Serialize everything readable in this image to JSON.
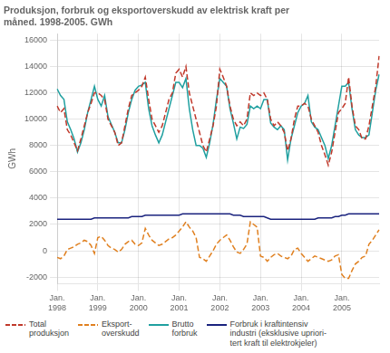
{
  "chart_data": {
    "type": "line",
    "title": "Produksjon, forbruk og eksportoverskudd av elektrisk kraft per\nmåned. 1998-2005. GWh",
    "ylabel": "GWh",
    "categories": [
      "Jan.\n1998",
      null,
      null,
      null,
      null,
      null,
      null,
      null,
      null,
      null,
      null,
      null,
      "Jan.\n1999",
      null,
      null,
      null,
      null,
      null,
      null,
      null,
      null,
      null,
      null,
      null,
      "Jan.\n2000",
      null,
      null,
      null,
      null,
      null,
      null,
      null,
      null,
      null,
      null,
      null,
      "Jan.\n2001",
      null,
      null,
      null,
      null,
      null,
      null,
      null,
      null,
      null,
      null,
      null,
      "Jan.\n2002",
      null,
      null,
      null,
      null,
      null,
      null,
      null,
      null,
      null,
      null,
      null,
      "Jan.\n2003",
      null,
      null,
      null,
      null,
      null,
      null,
      null,
      null,
      null,
      null,
      null,
      "Jan.\n2004",
      null,
      null,
      null,
      null,
      null,
      null,
      null,
      null,
      null,
      null,
      null,
      "Jan.\n2005",
      null,
      null,
      null,
      null,
      null,
      null,
      null,
      null,
      null,
      null,
      null
    ],
    "series": [
      {
        "name": "Total\nproduksjon",
        "color": "#c0392b",
        "line_style": "dashed",
        "values": [
          11000,
          10500,
          10800,
          9200,
          8800,
          8200,
          7600,
          8500,
          9500,
          10500,
          11200,
          12000,
          12000,
          11800,
          11500,
          10000,
          9500,
          9000,
          8000,
          8200,
          9500,
          10800,
          11800,
          12000,
          12200,
          12500,
          13200,
          11500,
          10000,
          9500,
          9000,
          9500,
          10500,
          11500,
          12000,
          13500,
          13800,
          13200,
          14000,
          12000,
          11000,
          10000,
          9000,
          8000,
          7500,
          8500,
          9500,
          11000,
          13800,
          13200,
          12500,
          11000,
          10000,
          9500,
          9800,
          9500,
          10000,
          12000,
          11800,
          12000,
          11800,
          12000,
          11500,
          10000,
          9500,
          9800,
          9500,
          9000,
          7600,
          8500,
          10000,
          11000,
          11000,
          11200,
          11000,
          10000,
          9500,
          9000,
          8000,
          7300,
          6500,
          7500,
          9000,
          10500,
          10800,
          11200,
          13200,
          11000,
          9500,
          9200,
          8500,
          8500,
          9500,
          11000,
          12500,
          14800
        ]
      },
      {
        "name": "Eksport-\noverskudd",
        "color": "#e08020",
        "line_style": "dashed",
        "values": [
          -500,
          -600,
          -400,
          100,
          200,
          300,
          500,
          600,
          800,
          700,
          400,
          -200,
          1000,
          1100,
          800,
          400,
          200,
          100,
          -100,
          100,
          500,
          700,
          800,
          500,
          400,
          600,
          1700,
          1200,
          800,
          600,
          400,
          500,
          700,
          900,
          1000,
          1200,
          1500,
          1800,
          2200,
          1800,
          1500,
          1000,
          -500,
          -600,
          -800,
          -400,
          0,
          500,
          800,
          1000,
          1200,
          800,
          300,
          -100,
          -200,
          100,
          500,
          2200,
          2000,
          1800,
          -400,
          -500,
          -800,
          -500,
          -300,
          -200,
          -400,
          -500,
          -600,
          -400,
          100,
          200,
          -200,
          -500,
          -800,
          -600,
          -400,
          -500,
          -600,
          -700,
          -800,
          -700,
          -400,
          -300,
          -1800,
          -2100,
          -2100,
          -1500,
          -1000,
          -800,
          -500,
          -400,
          500,
          800,
          1200,
          1600
        ]
      },
      {
        "name": "Brutto\nforbruk",
        "color": "#20a0a0",
        "line_style": "solid",
        "values": [
          12300,
          11800,
          11500,
          9800,
          9200,
          8500,
          7500,
          8200,
          9200,
          10500,
          11500,
          12500,
          11500,
          11000,
          11800,
          10200,
          9600,
          9000,
          8200,
          8200,
          9200,
          10500,
          11500,
          12200,
          12500,
          12600,
          12800,
          10800,
          9500,
          8800,
          8200,
          8800,
          9800,
          10800,
          11800,
          12800,
          12800,
          12400,
          13100,
          10800,
          9200,
          8000,
          8000,
          7800,
          7100,
          8200,
          9600,
          11500,
          13100,
          12800,
          12500,
          10800,
          9700,
          8500,
          9400,
          9300,
          9600,
          11000,
          10800,
          11000,
          10800,
          11500,
          11500,
          9700,
          9400,
          9200,
          9500,
          9200,
          6900,
          8500,
          9500,
          10500,
          11000,
          11200,
          11800,
          9800,
          9400,
          9200,
          8600,
          8000,
          7000,
          8000,
          9500,
          11000,
          12500,
          12500,
          12800,
          10800,
          9200,
          8800,
          8600,
          8600,
          8800,
          10500,
          12200,
          13400
        ]
      },
      {
        "name": "Forbruk i kraftintensiv\nindustri (eksklusive upriori-\ntert kraft til elektrokjeler)",
        "color": "#1a237e",
        "line_style": "solid",
        "values": [
          2400,
          2400,
          2400,
          2400,
          2400,
          2400,
          2400,
          2400,
          2400,
          2400,
          2400,
          2500,
          2500,
          2500,
          2500,
          2500,
          2500,
          2500,
          2500,
          2500,
          2500,
          2500,
          2600,
          2600,
          2600,
          2600,
          2700,
          2700,
          2700,
          2700,
          2700,
          2700,
          2700,
          2700,
          2700,
          2700,
          2700,
          2800,
          2800,
          2800,
          2800,
          2800,
          2800,
          2800,
          2800,
          2800,
          2800,
          2800,
          2800,
          2800,
          2800,
          2800,
          2700,
          2700,
          2700,
          2600,
          2600,
          2600,
          2600,
          2600,
          2600,
          2600,
          2500,
          2400,
          2400,
          2400,
          2400,
          2400,
          2400,
          2400,
          2400,
          2400,
          2400,
          2400,
          2400,
          2400,
          2400,
          2500,
          2500,
          2500,
          2500,
          2500,
          2600,
          2600,
          2700,
          2700,
          2800,
          2800,
          2800,
          2800,
          2800,
          2800,
          2800,
          2800,
          2800,
          2800
        ]
      }
    ],
    "ylim": [
      -2500,
      16500
    ],
    "yticks": [
      -2000,
      0,
      2000,
      4000,
      6000,
      8000,
      10000,
      12000,
      14000,
      16000
    ],
    "grid": true,
    "legend": "bottom"
  }
}
